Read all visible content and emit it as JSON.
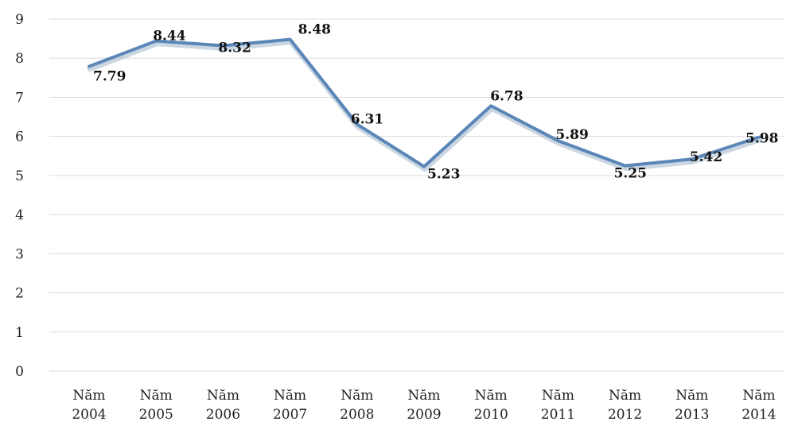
{
  "chart_data": {
    "type": "line",
    "title": "",
    "xlabel": "",
    "ylabel": "",
    "categories": [
      [
        "Năm",
        "2004"
      ],
      [
        "Năm",
        "2005"
      ],
      [
        "Năm",
        "2006"
      ],
      [
        "Năm",
        "2007"
      ],
      [
        "Năm",
        "2008"
      ],
      [
        "Năm",
        "2009"
      ],
      [
        "Năm",
        "2010"
      ],
      [
        "Năm",
        "2011"
      ],
      [
        "Năm",
        "2012"
      ],
      [
        "Năm",
        "2013"
      ],
      [
        "Năm",
        "2014"
      ]
    ],
    "series": [
      {
        "values": [
          7.79,
          8.44,
          8.32,
          8.48,
          6.31,
          5.23,
          6.78,
          5.89,
          5.25,
          5.42,
          5.98
        ],
        "labels": [
          "7.79",
          "8.44",
          "8.32",
          "8.48",
          "6.31",
          "5.23",
          "6.78",
          "5.89",
          "5.25",
          "5.42",
          "5.98"
        ],
        "color": "#5b86b8"
      }
    ],
    "ylim": [
      0,
      9
    ],
    "yticks": [
      "0",
      "1",
      "2",
      "3",
      "4",
      "5",
      "6",
      "7",
      "8",
      "9"
    ],
    "grid": true,
    "legend": "none"
  }
}
